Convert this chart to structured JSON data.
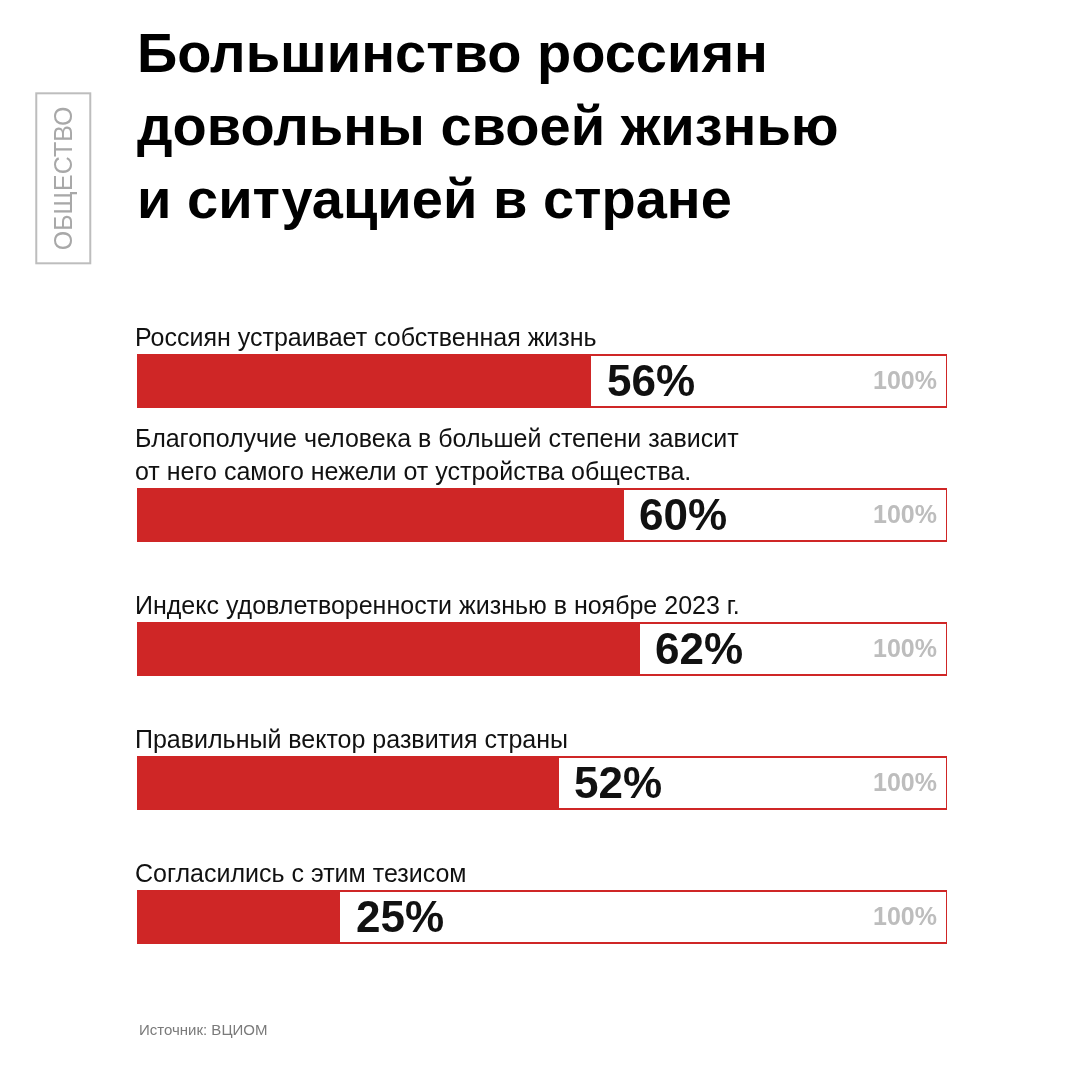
{
  "chart_data": {
    "type": "bar",
    "orientation": "horizontal",
    "stacked": true,
    "title": "Большинство россиян довольны своей жизнью и ситуацией в стране",
    "categories": [
      "Россиян устраивает собственная жизнь",
      "Благополучие человека в большей степени зависит от него самого нежели от устройства общества.",
      "Индекс удовлетворенности жизнью в ноябре 2023 г.",
      "Правильный вектор развития страны",
      "Согласились с этим тезисом"
    ],
    "series": [
      {
        "color": "#cf2626",
        "values": [
          56,
          60,
          62,
          52,
          25
        ],
        "value_labels": [
          "56%",
          "60%",
          "62%",
          "52%",
          "25%"
        ]
      },
      {
        "color": "#ffffff",
        "values": [
          44,
          40,
          38,
          48,
          75
        ]
      }
    ],
    "totals": [
      "100%",
      "100%",
      "100%",
      "100%",
      "100%"
    ],
    "xlim": [
      0,
      100
    ],
    "tick_labels": "y",
    "annotations": [
      "ОБЩЕСТВО",
      "Источник: ВЦИОМ"
    ]
  }
}
